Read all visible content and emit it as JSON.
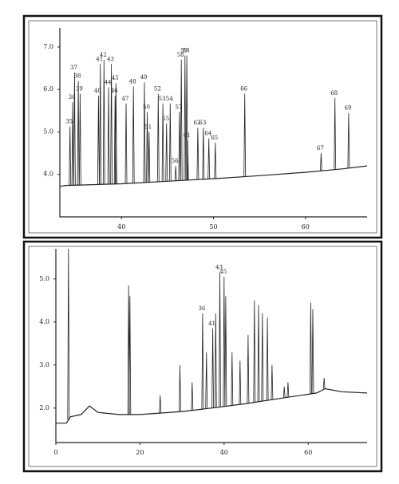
{
  "chart_data": [
    {
      "type": "line",
      "xlim": [
        33.3,
        66.7
      ],
      "ylim": [
        3.0,
        7.45
      ],
      "xticks": [
        40,
        50,
        60
      ],
      "yticks": [
        {
          "value": 4,
          "label": "4.0"
        },
        {
          "value": 5,
          "label": "5.0"
        },
        {
          "value": 6,
          "label": "6.0"
        },
        {
          "value": 7,
          "label": "7.0"
        }
      ],
      "color": "#222222",
      "baseline": {
        "x": [
          33.3,
          34.0,
          40,
          45,
          50,
          55,
          60,
          64,
          66.7
        ],
        "y": [
          3.72,
          3.74,
          3.78,
          3.84,
          3.9,
          3.97,
          4.05,
          4.13,
          4.2
        ]
      },
      "peaks": {
        "x": [
          34.4,
          34.7,
          34.9,
          35.3,
          35.5,
          37.5,
          37.7,
          38.1,
          38.9,
          38.6,
          39.4,
          39.3,
          40.5,
          41.3,
          42.5,
          42.8,
          43.0,
          44.0,
          44.5,
          45.3,
          44.9,
          45.9,
          46.3,
          46.5,
          46.9,
          47.1,
          47.2,
          48.3,
          48.9,
          49.5,
          50.2,
          53.4,
          61.7,
          63.2,
          64.7
        ],
        "y": [
          5.13,
          5.7,
          6.4,
          6.2,
          5.9,
          5.85,
          6.6,
          6.7,
          6.6,
          6.05,
          6.15,
          5.85,
          5.67,
          6.07,
          6.17,
          5.47,
          5.0,
          5.9,
          5.67,
          5.67,
          5.2,
          4.2,
          5.47,
          6.7,
          6.8,
          6.8,
          4.8,
          5.1,
          5.1,
          4.85,
          4.75,
          5.9,
          4.5,
          5.8,
          5.45
        ],
        "labels": [
          "35",
          "36",
          "37",
          "38",
          "39",
          "40",
          "41",
          "42",
          "43",
          "44",
          "45",
          "46",
          "47",
          "48",
          "49",
          "50",
          "51",
          "52",
          "53",
          "54",
          "55",
          "56",
          "57",
          "58",
          "59",
          "60",
          "61",
          "62",
          "63",
          "64",
          "65",
          "66",
          "67",
          "68",
          "69"
        ]
      }
    },
    {
      "type": "line",
      "xlim": [
        0,
        74
      ],
      "ylim": [
        1.2,
        5.7
      ],
      "xticks": [
        0,
        20,
        40,
        60
      ],
      "yticks": [
        {
          "value": 2,
          "label": "2.0"
        },
        {
          "value": 3,
          "label": "3.0"
        },
        {
          "value": 4,
          "label": "4.0"
        },
        {
          "value": 5,
          "label": "5.0"
        }
      ],
      "color": "#222222",
      "baseline": {
        "x": [
          0,
          2.5,
          3.5,
          6,
          8,
          10,
          15,
          20,
          30,
          37,
          45,
          55,
          62,
          64,
          68,
          74
        ],
        "y": [
          1.65,
          1.65,
          1.8,
          1.85,
          2.05,
          1.9,
          1.85,
          1.85,
          1.92,
          2.0,
          2.1,
          2.25,
          2.35,
          2.45,
          2.38,
          2.35
        ]
      },
      "peaks": {
        "x": [
          3.0,
          17.3,
          17.6,
          24.8,
          29.5,
          32.4,
          34.9,
          35.8,
          37.3,
          38.0,
          39.0,
          40.0,
          40.4,
          41.9,
          43.8,
          45.7,
          47.2,
          48.2,
          49.1,
          50.3,
          51.4,
          54.3,
          55.2,
          60.6,
          61.1,
          63.8
        ],
        "y": [
          5.7,
          4.85,
          4.6,
          2.3,
          3.0,
          2.6,
          4.2,
          3.3,
          3.85,
          4.2,
          5.15,
          5.05,
          4.6,
          3.3,
          3.1,
          3.7,
          4.5,
          4.4,
          4.2,
          4.1,
          3.0,
          2.5,
          2.6,
          4.45,
          4.3,
          2.7
        ],
        "labels": [
          null,
          null,
          null,
          null,
          null,
          null,
          "36",
          null,
          "41",
          null,
          "43",
          "45",
          null,
          null,
          null,
          null,
          null,
          null,
          null,
          null,
          null,
          null,
          null,
          null,
          null,
          null
        ]
      }
    }
  ]
}
